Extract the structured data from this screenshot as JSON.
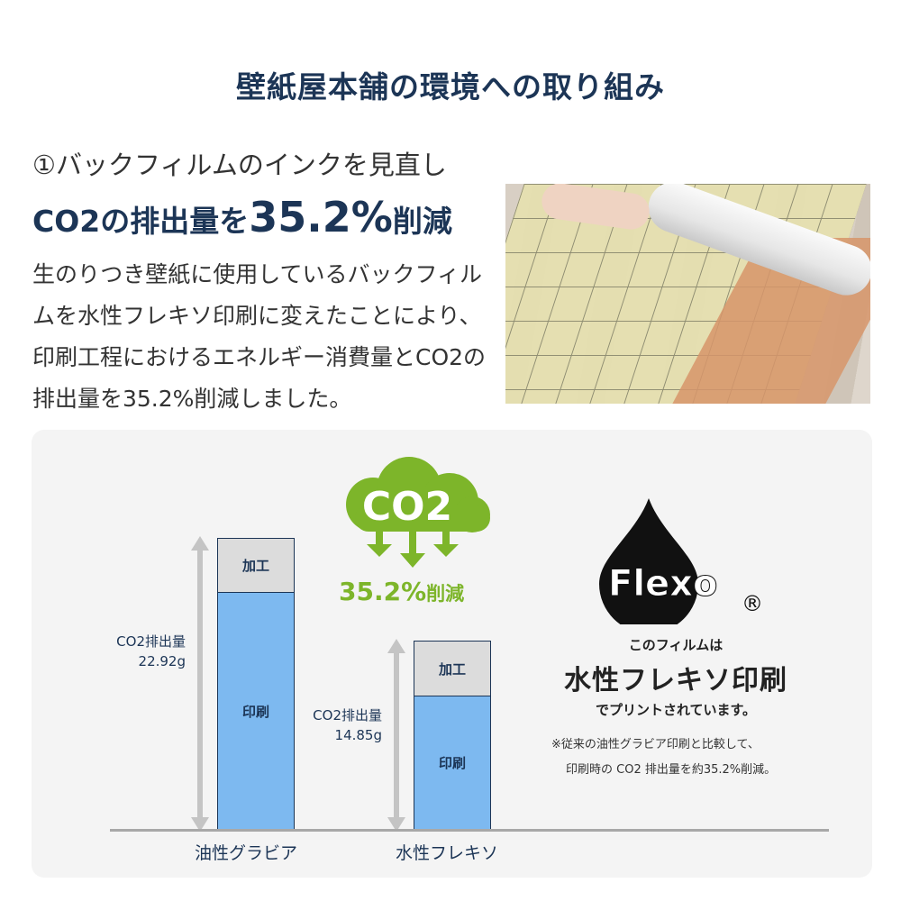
{
  "title": "壁紙屋本舗の環境への取り組み",
  "section": {
    "subtitle": "①バックフィルムのインクを見直し",
    "headline_pre": "CO2の排出量を",
    "headline_value": "35.2%",
    "headline_post": "削減",
    "body": "生のりつき壁紙に使用しているバックフィルムを水性フレキソ印刷に変えたことにより、印刷工程におけるエネルギー消費量とCO2の排出量を35.2%削減しました。"
  },
  "photo": {
    "description_icon": "wallpaper-backfilm-photo"
  },
  "infographic": {
    "cloud_label": "CO2",
    "reduction": "35.2%",
    "reduction_suffix": "削減",
    "logo_text": "Flexo",
    "logo_mark": "®",
    "caption1": "このフィルムは",
    "caption2": "水性フレキソ印刷",
    "caption3": "でプリントされています。",
    "note1": "※従来の油性グラビア印刷と比較して、",
    "note2": "印刷時の CO2 排出量を約35.2%削減。",
    "colors": {
      "navy": "#1c3556",
      "green": "#7db52a",
      "print_blue": "#7db9f0",
      "process_gray": "#dcdcdc"
    }
  },
  "chart_data": {
    "type": "bar",
    "stacked": true,
    "categories": [
      "油性グラビア",
      "水性フレキソ"
    ],
    "series": [
      {
        "name": "印刷",
        "values": [
          18.67,
          10.52
        ]
      },
      {
        "name": "加工",
        "values": [
          4.25,
          4.33
        ]
      }
    ],
    "totals": [
      {
        "label": "CO2排出量",
        "value": "22.92g"
      },
      {
        "label": "CO2排出量",
        "value": "14.85g"
      }
    ],
    "ylim": [
      0,
      22.92
    ],
    "grid": false
  }
}
